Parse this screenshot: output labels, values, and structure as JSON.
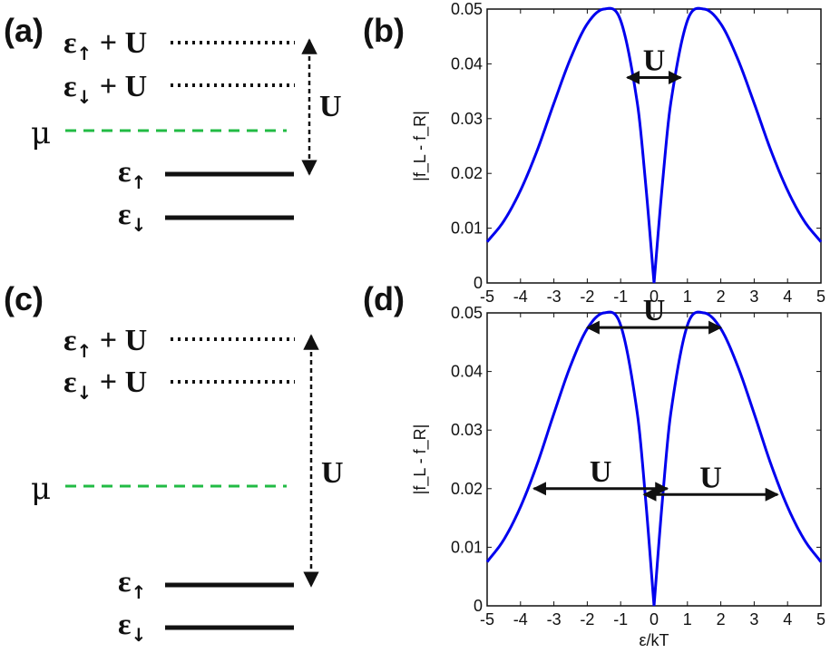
{
  "panels": {
    "a": "(a)",
    "b": "(b)",
    "c": "(c)",
    "d": "(d)"
  },
  "diagrams": {
    "a": {
      "levels": [
        {
          "main": "ε",
          "sub": "↑",
          "suffix": " + U"
        },
        {
          "main": "ε",
          "sub": "↓",
          "suffix": " + U"
        },
        {
          "main": "μ"
        },
        {
          "main": "ε",
          "sub": "↑"
        },
        {
          "main": "ε",
          "sub": "↓"
        }
      ],
      "gap_label": "U"
    },
    "c": {
      "levels": [
        {
          "main": "ε",
          "sub": "↑",
          "suffix": " + U"
        },
        {
          "main": "ε",
          "sub": "↓",
          "suffix": " + U"
        },
        {
          "main": "μ"
        },
        {
          "main": "ε",
          "sub": "↑"
        },
        {
          "main": "ε",
          "sub": "↓"
        }
      ],
      "gap_label": "U"
    }
  },
  "colors": {
    "curve": "#0000ee",
    "mu_line": "#22bb44",
    "ink": "#111111"
  },
  "chart_data": [
    {
      "id": "b",
      "type": "line",
      "function": "|f_L - f_R|",
      "xlabel": "",
      "ylabel": "|f_L - f_R|",
      "xlim": [
        -5,
        5
      ],
      "ylim": [
        0,
        0.05
      ],
      "xticks": [
        "-5",
        "-4",
        "-3",
        "-2",
        "-1",
        "0",
        "1",
        "2",
        "3",
        "4",
        "5"
      ],
      "yticks": [
        "0",
        "0.01",
        "0.02",
        "0.03",
        "0.04",
        "0.05"
      ],
      "series": [
        {
          "x": [
            -5,
            -4.5,
            -4,
            -3.5,
            -3,
            -2.5,
            -2,
            -1.5,
            -1,
            -0.5,
            -0.25,
            0,
            0.25,
            0.5,
            1,
            1.5,
            2,
            2.5,
            3,
            3.5,
            4,
            4.5,
            5
          ],
          "values": [
            0.0075,
            0.0113,
            0.0169,
            0.0242,
            0.0328,
            0.041,
            0.0473,
            0.05,
            0.0479,
            0.0328,
            0.018,
            0.0,
            0.018,
            0.0328,
            0.0479,
            0.05,
            0.0473,
            0.041,
            0.0328,
            0.0242,
            0.0169,
            0.0113,
            0.0075
          ]
        }
      ],
      "annotations": [
        {
          "label": "U",
          "x_from": -0.8,
          "x_to": 0.8,
          "y": 0.0375
        }
      ]
    },
    {
      "id": "d",
      "type": "line",
      "function": "|f_L - f_R|",
      "xlabel": "ε/kT",
      "ylabel": "|f_L - f_R|",
      "xlim": [
        -5,
        5
      ],
      "ylim": [
        0,
        0.05
      ],
      "xticks": [
        "-5",
        "-4",
        "-3",
        "-2",
        "-1",
        "0",
        "1",
        "2",
        "3",
        "4",
        "5"
      ],
      "yticks": [
        "0",
        "0.01",
        "0.02",
        "0.03",
        "0.04",
        "0.05"
      ],
      "series": [
        {
          "x": [
            -5,
            -4.5,
            -4,
            -3.5,
            -3,
            -2.5,
            -2,
            -1.5,
            -1,
            -0.5,
            -0.25,
            0,
            0.25,
            0.5,
            1,
            1.5,
            2,
            2.5,
            3,
            3.5,
            4,
            4.5,
            5
          ],
          "values": [
            0.0075,
            0.0113,
            0.0169,
            0.0242,
            0.0328,
            0.041,
            0.0473,
            0.05,
            0.0479,
            0.0328,
            0.018,
            0.0,
            0.018,
            0.0328,
            0.0479,
            0.05,
            0.0473,
            0.041,
            0.0328,
            0.0242,
            0.0169,
            0.0113,
            0.0075
          ]
        }
      ],
      "annotations": [
        {
          "label": "U",
          "x_from": -2.0,
          "x_to": 2.0,
          "y": 0.0475
        },
        {
          "label": "U",
          "x_from": -3.6,
          "x_to": 0.4,
          "y": 0.02
        },
        {
          "label": "U",
          "x_from": -0.3,
          "x_to": 3.7,
          "y": 0.019
        }
      ]
    }
  ]
}
